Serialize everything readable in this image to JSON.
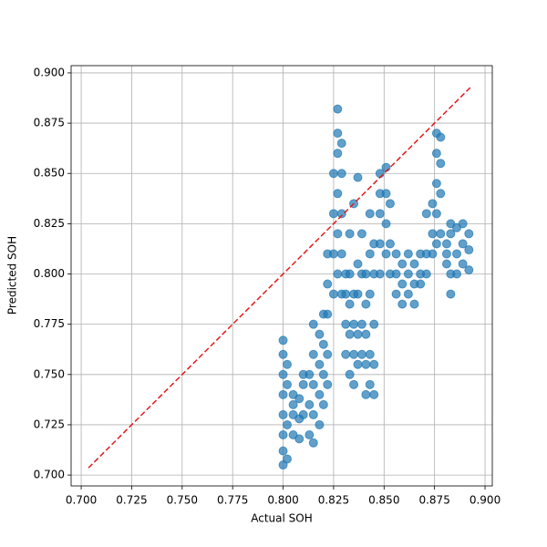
{
  "chart_data": {
    "type": "scatter",
    "xlabel": "Actual SOH",
    "ylabel": "Predicted SOH",
    "color": "#1f77b4",
    "grid": true,
    "xlim": [
      0.695,
      0.9036
    ],
    "ylim": [
      0.6946,
      0.9036
    ],
    "xticks": [
      {
        "value": 0.7,
        "label": "0.700"
      },
      {
        "value": 0.725,
        "label": "0.725"
      },
      {
        "value": 0.75,
        "label": "0.750"
      },
      {
        "value": 0.775,
        "label": "0.775"
      },
      {
        "value": 0.8,
        "label": "0.800"
      },
      {
        "value": 0.825,
        "label": "0.825"
      },
      {
        "value": 0.85,
        "label": "0.850"
      },
      {
        "value": 0.875,
        "label": "0.875"
      },
      {
        "value": 0.9,
        "label": "0.900"
      }
    ],
    "yticks": [
      {
        "value": 0.7,
        "label": "0.700"
      },
      {
        "value": 0.725,
        "label": "0.725"
      },
      {
        "value": 0.75,
        "label": "0.750"
      },
      {
        "value": 0.775,
        "label": "0.775"
      },
      {
        "value": 0.8,
        "label": "0.800"
      },
      {
        "value": 0.825,
        "label": "0.825"
      },
      {
        "value": 0.85,
        "label": "0.850"
      },
      {
        "value": 0.875,
        "label": "0.875"
      },
      {
        "value": 0.9,
        "label": "0.900"
      }
    ],
    "reference_line": {
      "x": [
        0.7036,
        0.8928
      ],
      "values": [
        0.7036,
        0.8928
      ],
      "color": "#e41a1c"
    },
    "x": [
      0.8,
      0.8,
      0.8,
      0.8,
      0.8,
      0.8,
      0.8,
      0.8,
      0.802,
      0.802,
      0.802,
      0.802,
      0.805,
      0.805,
      0.805,
      0.805,
      0.808,
      0.808,
      0.808,
      0.81,
      0.81,
      0.81,
      0.813,
      0.813,
      0.813,
      0.815,
      0.815,
      0.815,
      0.815,
      0.815,
      0.818,
      0.818,
      0.818,
      0.818,
      0.82,
      0.82,
      0.82,
      0.82,
      0.822,
      0.822,
      0.822,
      0.822,
      0.822,
      0.825,
      0.825,
      0.825,
      0.825,
      0.827,
      0.827,
      0.827,
      0.827,
      0.827,
      0.827,
      0.829,
      0.829,
      0.829,
      0.829,
      0.829,
      0.831,
      0.831,
      0.831,
      0.831,
      0.833,
      0.833,
      0.833,
      0.833,
      0.833,
      0.835,
      0.835,
      0.835,
      0.835,
      0.835,
      0.837,
      0.837,
      0.837,
      0.837,
      0.837,
      0.839,
      0.839,
      0.839,
      0.839,
      0.841,
      0.841,
      0.841,
      0.841,
      0.841,
      0.843,
      0.843,
      0.843,
      0.843,
      0.843,
      0.845,
      0.845,
      0.845,
      0.845,
      0.845,
      0.848,
      0.848,
      0.848,
      0.848,
      0.848,
      0.851,
      0.851,
      0.851,
      0.851,
      0.853,
      0.853,
      0.853,
      0.856,
      0.856,
      0.856,
      0.859,
      0.859,
      0.859,
      0.862,
      0.862,
      0.862,
      0.865,
      0.865,
      0.865,
      0.868,
      0.868,
      0.868,
      0.871,
      0.871,
      0.871,
      0.874,
      0.874,
      0.874,
      0.876,
      0.876,
      0.876,
      0.876,
      0.876,
      0.878,
      0.878,
      0.878,
      0.878,
      0.881,
      0.881,
      0.881,
      0.883,
      0.883,
      0.883,
      0.883,
      0.886,
      0.886,
      0.886,
      0.889,
      0.889,
      0.889,
      0.892,
      0.892,
      0.892
    ],
    "values": [
      0.705,
      0.712,
      0.72,
      0.73,
      0.74,
      0.75,
      0.76,
      0.767,
      0.708,
      0.725,
      0.745,
      0.755,
      0.72,
      0.73,
      0.735,
      0.74,
      0.718,
      0.728,
      0.738,
      0.73,
      0.745,
      0.75,
      0.72,
      0.735,
      0.75,
      0.716,
      0.73,
      0.745,
      0.76,
      0.775,
      0.725,
      0.74,
      0.755,
      0.77,
      0.735,
      0.75,
      0.765,
      0.78,
      0.745,
      0.76,
      0.78,
      0.795,
      0.81,
      0.79,
      0.81,
      0.83,
      0.85,
      0.8,
      0.82,
      0.84,
      0.86,
      0.87,
      0.882,
      0.79,
      0.81,
      0.83,
      0.85,
      0.865,
      0.76,
      0.775,
      0.79,
      0.8,
      0.75,
      0.77,
      0.785,
      0.8,
      0.82,
      0.745,
      0.76,
      0.775,
      0.79,
      0.835,
      0.755,
      0.77,
      0.79,
      0.805,
      0.848,
      0.76,
      0.775,
      0.8,
      0.82,
      0.74,
      0.755,
      0.77,
      0.785,
      0.8,
      0.745,
      0.76,
      0.79,
      0.81,
      0.83,
      0.74,
      0.755,
      0.775,
      0.8,
      0.815,
      0.8,
      0.815,
      0.83,
      0.84,
      0.85,
      0.81,
      0.825,
      0.84,
      0.853,
      0.8,
      0.815,
      0.835,
      0.79,
      0.8,
      0.81,
      0.785,
      0.795,
      0.805,
      0.79,
      0.8,
      0.81,
      0.785,
      0.795,
      0.805,
      0.795,
      0.8,
      0.81,
      0.8,
      0.81,
      0.83,
      0.81,
      0.82,
      0.835,
      0.815,
      0.83,
      0.845,
      0.86,
      0.87,
      0.82,
      0.84,
      0.855,
      0.868,
      0.805,
      0.81,
      0.815,
      0.79,
      0.8,
      0.82,
      0.825,
      0.8,
      0.81,
      0.823,
      0.805,
      0.815,
      0.825,
      0.802,
      0.812,
      0.82
    ]
  }
}
